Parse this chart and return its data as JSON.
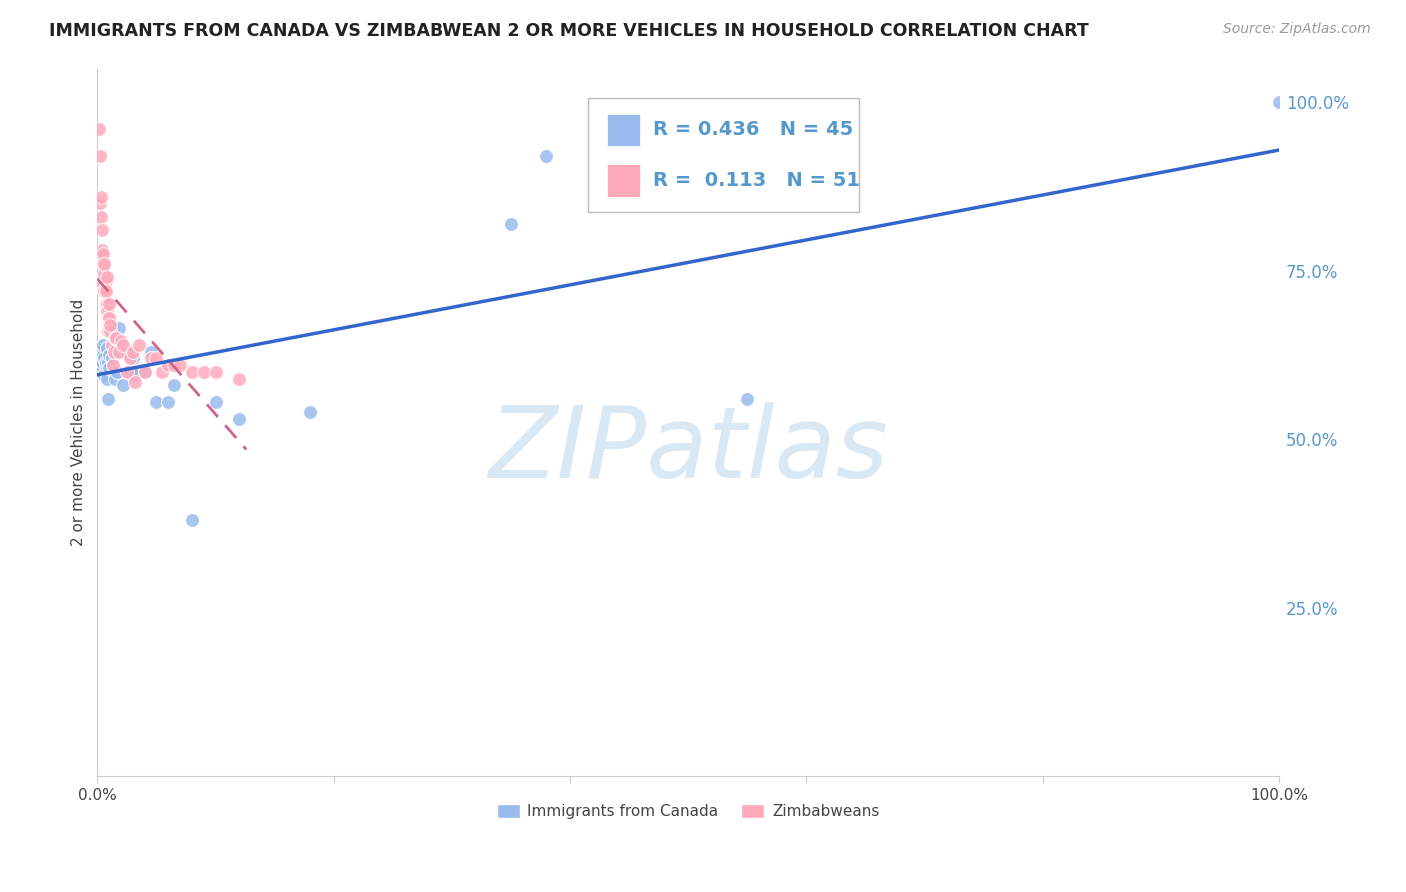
{
  "title": "IMMIGRANTS FROM CANADA VS ZIMBABWEAN 2 OR MORE VEHICLES IN HOUSEHOLD CORRELATION CHART",
  "source": "Source: ZipAtlas.com",
  "ylabel": "2 or more Vehicles in Household",
  "legend_blue_R": "0.436",
  "legend_blue_N": "45",
  "legend_pink_R": "0.113",
  "legend_pink_N": "51",
  "legend_label_blue": "Immigrants from Canada",
  "legend_label_pink": "Zimbabweans",
  "blue_scatter_color": "#99BBEE",
  "pink_scatter_color": "#FFAABB",
  "blue_line_color": "#3366CC",
  "pink_line_color": "#CC6688",
  "watermark_text": "ZIPatlas",
  "watermark_color": "#D8E8F5",
  "blue_x": [
    0.001,
    0.002,
    0.003,
    0.003,
    0.004,
    0.005,
    0.005,
    0.006,
    0.006,
    0.007,
    0.007,
    0.008,
    0.008,
    0.009,
    0.009,
    0.01,
    0.01,
    0.011,
    0.012,
    0.013,
    0.014,
    0.015,
    0.016,
    0.017,
    0.018,
    0.02,
    0.022,
    0.025,
    0.028,
    0.03,
    0.032,
    0.035,
    0.04,
    0.045,
    0.05,
    0.06,
    0.065,
    0.08,
    0.1,
    0.12,
    0.18,
    0.35,
    0.38,
    0.55,
    1.0
  ],
  "blue_y": [
    0.62,
    0.6,
    0.63,
    0.61,
    0.615,
    0.625,
    0.64,
    0.595,
    0.62,
    0.61,
    0.615,
    0.59,
    0.635,
    0.56,
    0.615,
    0.625,
    0.605,
    0.665,
    0.62,
    0.665,
    0.6,
    0.59,
    0.64,
    0.6,
    0.665,
    0.64,
    0.58,
    0.63,
    0.6,
    0.62,
    0.595,
    0.6,
    0.6,
    0.63,
    0.555,
    0.555,
    0.58,
    0.38,
    0.555,
    0.53,
    0.54,
    0.82,
    0.92,
    0.56,
    1.0
  ],
  "pink_x": [
    0.001,
    0.002,
    0.002,
    0.003,
    0.003,
    0.003,
    0.004,
    0.004,
    0.004,
    0.005,
    0.005,
    0.005,
    0.006,
    0.006,
    0.006,
    0.007,
    0.007,
    0.007,
    0.008,
    0.008,
    0.008,
    0.009,
    0.009,
    0.01,
    0.01,
    0.011,
    0.011,
    0.012,
    0.013,
    0.014,
    0.015,
    0.016,
    0.018,
    0.02,
    0.022,
    0.025,
    0.028,
    0.03,
    0.032,
    0.035,
    0.04,
    0.045,
    0.05,
    0.055,
    0.06,
    0.065,
    0.07,
    0.08,
    0.09,
    0.1,
    0.12
  ],
  "pink_y": [
    0.96,
    0.85,
    0.92,
    0.86,
    0.83,
    0.77,
    0.81,
    0.75,
    0.78,
    0.76,
    0.73,
    0.775,
    0.72,
    0.745,
    0.76,
    0.7,
    0.735,
    0.72,
    0.74,
    0.7,
    0.69,
    0.68,
    0.66,
    0.7,
    0.68,
    0.66,
    0.67,
    0.64,
    0.61,
    0.63,
    0.65,
    0.65,
    0.63,
    0.645,
    0.64,
    0.6,
    0.62,
    0.63,
    0.585,
    0.64,
    0.6,
    0.62,
    0.62,
    0.6,
    0.61,
    0.61,
    0.61,
    0.6,
    0.6,
    0.6,
    0.59
  ],
  "xlim": [
    0.0,
    1.0
  ],
  "ylim": [
    0.0,
    1.05
  ],
  "yticks": [
    0.0,
    0.25,
    0.5,
    0.75,
    1.0
  ],
  "ytick_labels_right": [
    "",
    "25.0%",
    "50.0%",
    "75.0%",
    "100.0%"
  ],
  "xtick_positions": [
    0.0,
    0.2,
    0.4,
    0.6,
    0.8,
    1.0
  ],
  "xtick_labels": [
    "0.0%",
    "",
    "",
    "",
    "",
    "100.0%"
  ],
  "grid_color": "#DDDDDD",
  "spine_color": "#CCCCCC",
  "right_label_color": "#5599CC"
}
